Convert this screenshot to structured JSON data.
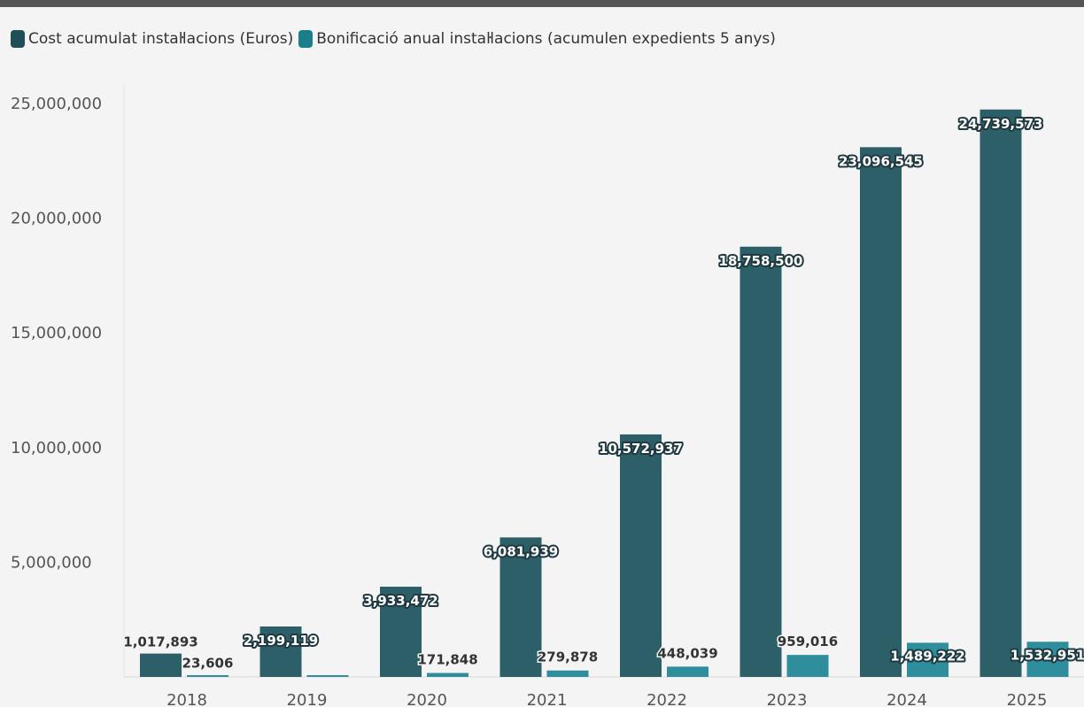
{
  "chart_data": {
    "type": "bar",
    "categories": [
      "2018",
      "2019",
      "2020",
      "2021",
      "2022",
      "2023",
      "2024",
      "2025"
    ],
    "series": [
      {
        "name": "Cost acumulat instaŀlacions (Euros)",
        "color": "#2d5f69",
        "values": [
          1017893,
          2199119,
          3933472,
          6081939,
          10572937,
          18758500,
          23096545,
          24739573
        ],
        "labels": [
          "1,017,893",
          "2,199,119",
          "3,933,472",
          "6,081,939",
          "10,572,937",
          "18,758,500",
          "23,096,545",
          "24,739,573"
        ]
      },
      {
        "name": "Bonificació anual instaŀlacions (acumulen expedients 5 anys)",
        "color": "#2f8e9b",
        "values": [
          23606,
          0,
          171848,
          279878,
          448039,
          959016,
          1489222,
          1532951
        ],
        "labels": [
          "23,606",
          "",
          "171,848",
          "279,878",
          "448,039",
          "959,016",
          "1,489,222",
          "1,532,951"
        ]
      }
    ],
    "yticks": [
      "5,000,000",
      "10,000,000",
      "15,000,000",
      "20,000,000",
      "25,000,000"
    ],
    "ylim": [
      0,
      25000000
    ],
    "legend": "top-left",
    "grid": false
  }
}
